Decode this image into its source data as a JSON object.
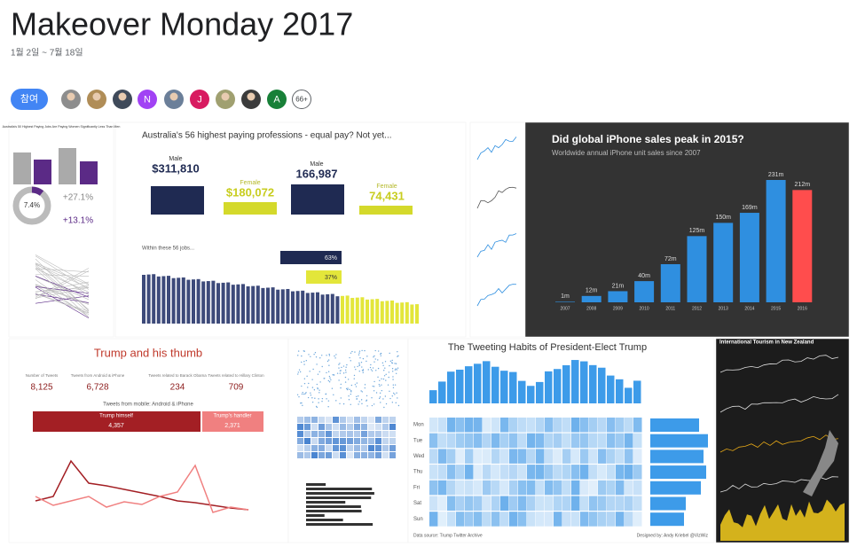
{
  "header": {
    "title": "Makeover Monday 2017",
    "subtitle": "1월 2일 ~ 7월 18일"
  },
  "join_button": "참여",
  "members": [
    "N",
    "J",
    "A"
  ],
  "more_members": "66+",
  "thumbnails": {
    "australia_small": {
      "title": "Australia's 50 Highest Paying Jobs Are Paying Women Significantly Less Than Men",
      "donut": "7.4%",
      "changes": [
        "+27.1%",
        "+13.1%"
      ]
    },
    "australia_pay": {
      "title": "Australia's 56 highest paying professions - equal pay? Not yet...",
      "groups": [
        {
          "label": "Male",
          "value": "$311,810"
        },
        {
          "label": "Female",
          "value": "$180,072"
        },
        {
          "label": "Male",
          "value": "166,987"
        },
        {
          "label": "Female",
          "value": "74,431"
        }
      ],
      "shares": [
        "63%",
        "37%"
      ],
      "section": "Within these 56 jobs..."
    },
    "iphone": {
      "type": "bar",
      "title": "Did global iPhone sales peak in 2015?",
      "subtitle": "Worldwide annual iPhone unit sales since 2007",
      "categories": [
        "2007",
        "2008",
        "2009",
        "2010",
        "2011",
        "2012",
        "2013",
        "2014",
        "2015",
        "2016"
      ],
      "values": [
        1,
        12,
        21,
        40,
        72,
        125,
        150,
        169,
        231,
        212
      ],
      "value_labels": [
        "1m",
        "12m",
        "21m",
        "40m",
        "72m",
        "125m",
        "150m",
        "169m",
        "231m",
        "212m"
      ],
      "colors": [
        "#2f8fe0",
        "#2f8fe0",
        "#2f8fe0",
        "#2f8fe0",
        "#2f8fe0",
        "#2f8fe0",
        "#2f8fe0",
        "#2f8fe0",
        "#2f8fe0",
        "#ff4d4d"
      ]
    },
    "trump_thumb": {
      "title": "Trump and his thumb",
      "kpis": [
        {
          "label": "Number of Tweets",
          "value": "8,125"
        },
        {
          "label": "Tweets from Android & iPhone",
          "value": "6,728"
        },
        {
          "label": "Tweets related to Barack Obama",
          "value": "234"
        },
        {
          "label": "Tweets related to Hillary Clinton",
          "value": "709"
        }
      ],
      "split_title": "Tweets from mobile: Android & iPhone",
      "split": [
        {
          "label": "Trump himself",
          "value": "4,357"
        },
        {
          "label": "Trump's handler",
          "value": "2,371"
        }
      ]
    },
    "tweeting_habits": {
      "title": "The Tweeting Habits of President-Elect Trump",
      "days": [
        "Mon",
        "Tue",
        "Wed",
        "Thu",
        "Fri",
        "Sat",
        "Sun"
      ],
      "source": "Data source: Trump Twitter Archive",
      "credit": "Designed by: Andy Kriebel @VizWiz"
    },
    "tourism": {
      "title": "International Tourism in New Zealand"
    }
  }
}
